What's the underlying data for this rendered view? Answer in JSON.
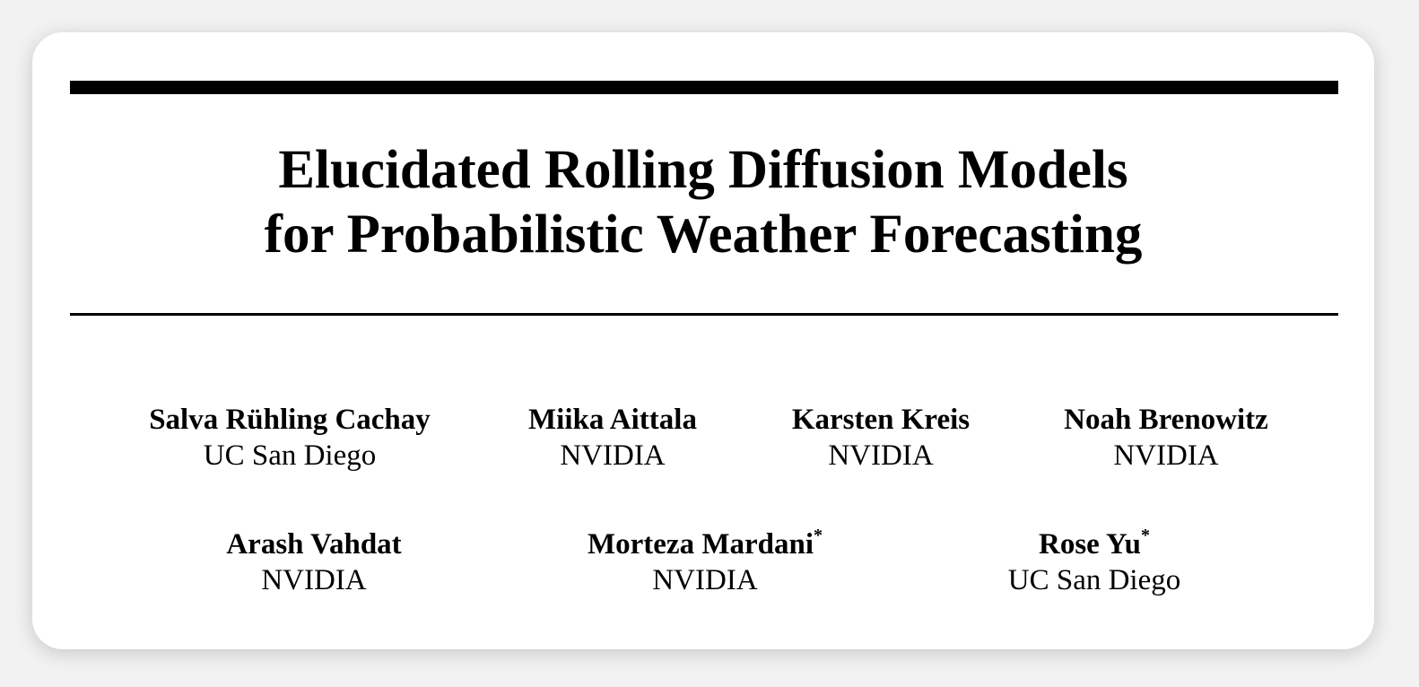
{
  "paper": {
    "title_line1": "Elucidated Rolling Diffusion Models",
    "title_line2": "for Probabilistic Weather Forecasting",
    "authors": [
      {
        "name": "Salva Rühling Cachay",
        "mark": "",
        "affiliation": "UC San Diego"
      },
      {
        "name": "Miika Aittala",
        "mark": "",
        "affiliation": "NVIDIA"
      },
      {
        "name": "Karsten Kreis",
        "mark": "",
        "affiliation": "NVIDIA"
      },
      {
        "name": "Noah Brenowitz",
        "mark": "",
        "affiliation": "NVIDIA"
      },
      {
        "name": "Arash Vahdat",
        "mark": "",
        "affiliation": "NVIDIA"
      },
      {
        "name": "Morteza Mardani",
        "mark": "*",
        "affiliation": "NVIDIA"
      },
      {
        "name": "Rose Yu",
        "mark": "*",
        "affiliation": "UC San Diego"
      }
    ]
  }
}
